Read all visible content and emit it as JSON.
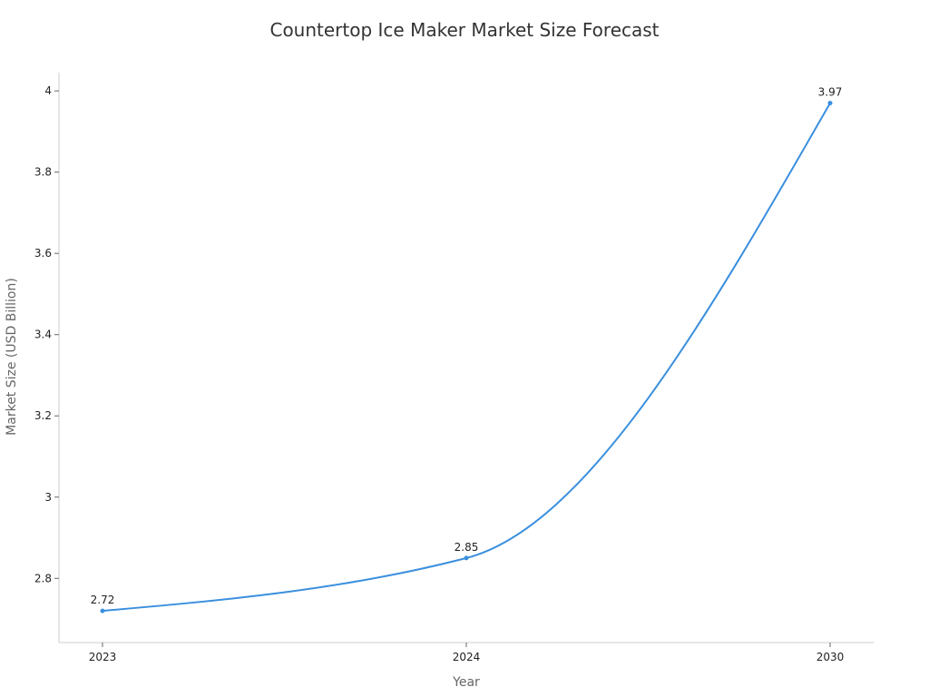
{
  "chart_data": {
    "type": "line",
    "title": "Countertop Ice Maker Market Size Forecast",
    "xlabel": "Year",
    "ylabel": "Market Size (USD Billion)",
    "categories": [
      "2023",
      "2024",
      "2030"
    ],
    "series": [
      {
        "values": [
          2.72,
          2.85,
          3.97
        ]
      }
    ],
    "data_labels": [
      "2.72",
      "2.85",
      "3.97"
    ],
    "y_ticks": [
      "2.8",
      "3",
      "3.2",
      "3.4",
      "3.6",
      "3.8",
      "4"
    ],
    "ylim": [
      2.642,
      4.045
    ],
    "grid": false,
    "line_color": "#3a8fde"
  }
}
